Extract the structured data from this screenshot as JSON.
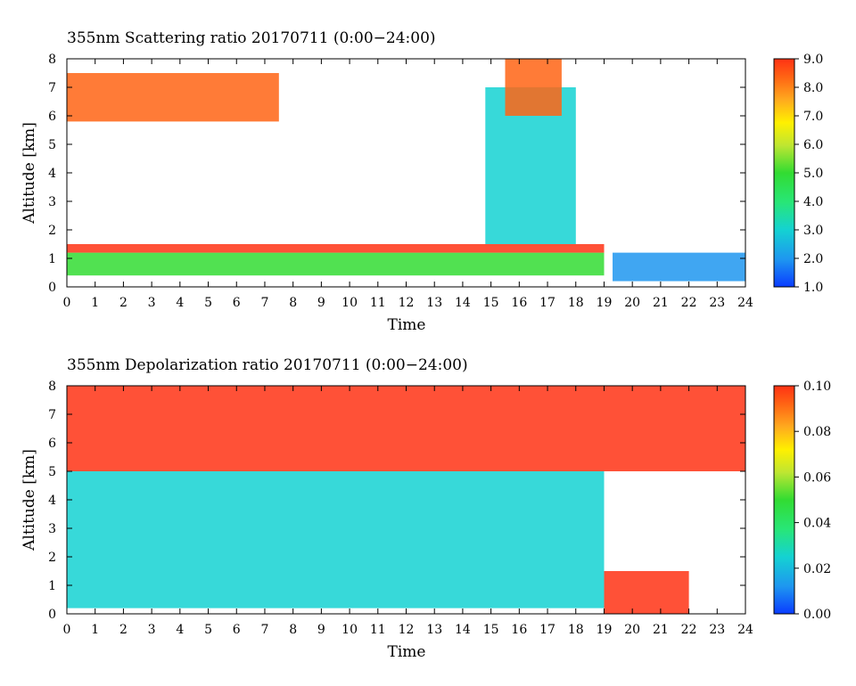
{
  "chart_data": [
    {
      "type": "heatmap",
      "title": "355nm Scattering ratio  20170711 (0:00−24:00)",
      "xlabel": "Time",
      "ylabel": "Altitude [km]",
      "xlim": [
        0,
        24
      ],
      "ylim": [
        0,
        8
      ],
      "x_ticks": [
        "0",
        "1",
        "2",
        "3",
        "4",
        "5",
        "6",
        "7",
        "8",
        "9",
        "10",
        "11",
        "12",
        "13",
        "14",
        "15",
        "16",
        "17",
        "18",
        "19",
        "20",
        "21",
        "22",
        "23",
        "24"
      ],
      "y_ticks": [
        "0",
        "1",
        "2",
        "3",
        "4",
        "5",
        "6",
        "7",
        "8"
      ],
      "colorbar": {
        "range": [
          1.0,
          9.0
        ],
        "ticks": [
          "1.0",
          "2.0",
          "3.0",
          "4.0",
          "5.0",
          "6.0",
          "7.0",
          "8.0",
          "9.0"
        ]
      },
      "colormap": [
        "#0a3cff",
        "#1e96f0",
        "#14d2d2",
        "#28e678",
        "#32dc32",
        "#bee632",
        "#fff000",
        "#ffaa1e",
        "#ff6414",
        "#ff3214"
      ],
      "features": [
        {
          "kind": "boundary-layer",
          "x": [
            0,
            19
          ],
          "y": [
            0.4,
            1.2
          ],
          "value": 4.2
        },
        {
          "kind": "cloud-base",
          "x": [
            0,
            19
          ],
          "y": [
            1.2,
            1.5
          ],
          "value": 9.0
        },
        {
          "kind": "column",
          "x": [
            14.8,
            18.0
          ],
          "y": [
            1.5,
            7.0
          ],
          "value": 2.8
        },
        {
          "kind": "elevated-cloud",
          "x": [
            15.5,
            17.5
          ],
          "y": [
            6.0,
            8.0
          ],
          "value": 8.0
        },
        {
          "kind": "elevated-layer",
          "x": [
            0,
            7.5
          ],
          "y": [
            5.8,
            7.5
          ],
          "value": 8.0
        },
        {
          "kind": "night-boundary-layer",
          "x": [
            19.3,
            24
          ],
          "y": [
            0.2,
            1.2
          ],
          "value": 1.8
        }
      ]
    },
    {
      "type": "heatmap",
      "title": "355nm Depolarization ratio  20170711 (0:00−24:00)",
      "xlabel": "Time",
      "ylabel": "Altitude [km]",
      "xlim": [
        0,
        24
      ],
      "ylim": [
        0,
        8
      ],
      "x_ticks": [
        "0",
        "1",
        "2",
        "3",
        "4",
        "5",
        "6",
        "7",
        "8",
        "9",
        "10",
        "11",
        "12",
        "13",
        "14",
        "15",
        "16",
        "17",
        "18",
        "19",
        "20",
        "21",
        "22",
        "23",
        "24"
      ],
      "y_ticks": [
        "0",
        "1",
        "2",
        "3",
        "4",
        "5",
        "6",
        "7",
        "8"
      ],
      "colorbar": {
        "range": [
          0.0,
          0.1
        ],
        "ticks": [
          "0.00",
          "0.02",
          "0.04",
          "0.06",
          "0.08",
          "0.10"
        ]
      },
      "colormap": [
        "#0a3cff",
        "#1e96f0",
        "#14d2d2",
        "#28e678",
        "#32dc32",
        "#bee632",
        "#fff000",
        "#ffaa1e",
        "#ff6414",
        "#ff3214"
      ],
      "features": [
        {
          "kind": "aerosol-layer",
          "x": [
            0,
            19
          ],
          "y": [
            0.2,
            5.0
          ],
          "value": 0.025
        },
        {
          "kind": "upper-noise",
          "x": [
            0,
            24
          ],
          "y": [
            5.0,
            8.0
          ],
          "value": 0.09
        },
        {
          "kind": "night-boundary-layer",
          "x": [
            19.0,
            22.0
          ],
          "y": [
            0.0,
            1.5
          ],
          "value": 0.09
        }
      ]
    }
  ]
}
